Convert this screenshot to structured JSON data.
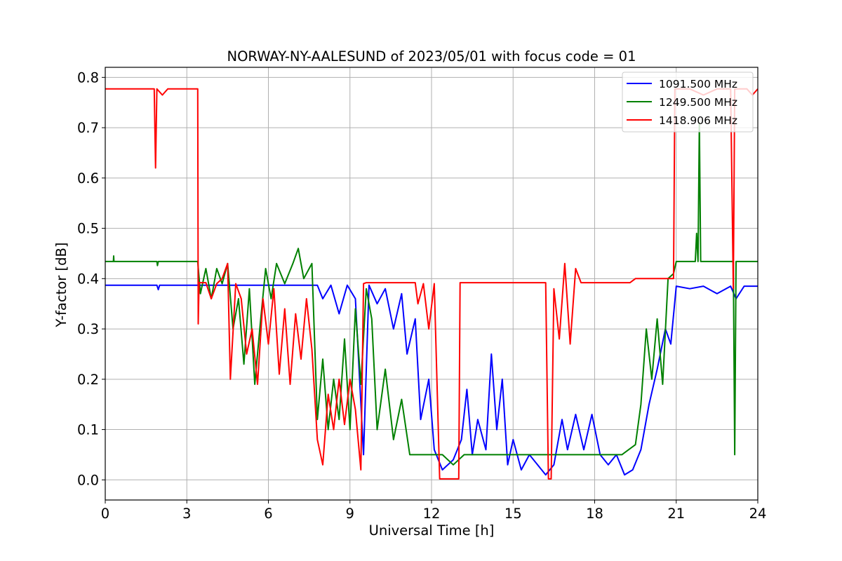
{
  "chart_data": {
    "type": "line",
    "title": "NORWAY-NY-AALESUND of 2023/05/01 with focus code = 01",
    "xlabel": "Universal Time [h]",
    "ylabel": "Y-factor [dB]",
    "xlim": [
      0,
      24
    ],
    "ylim": [
      -0.04,
      0.82
    ],
    "xticks": [
      0,
      3,
      6,
      9,
      12,
      15,
      18,
      21,
      24
    ],
    "yticks": [
      0.0,
      0.1,
      0.2,
      0.3,
      0.4,
      0.5,
      0.6,
      0.7,
      0.8
    ],
    "ytick_labels": [
      "0.0",
      "0.1",
      "0.2",
      "0.3",
      "0.4",
      "0.5",
      "0.6",
      "0.7",
      "0.8"
    ],
    "grid": true,
    "legend_position": "top-right",
    "series": [
      {
        "name": "1091.500 MHz",
        "color": "#0000ff",
        "points": [
          [
            0,
            0.387
          ],
          [
            1.9,
            0.387
          ],
          [
            1.95,
            0.378
          ],
          [
            2.0,
            0.387
          ],
          [
            4.5,
            0.387
          ],
          [
            7.8,
            0.387
          ],
          [
            8.0,
            0.36
          ],
          [
            8.3,
            0.387
          ],
          [
            8.6,
            0.33
          ],
          [
            8.9,
            0.387
          ],
          [
            9.2,
            0.36
          ],
          [
            9.5,
            0.05
          ],
          [
            9.7,
            0.387
          ],
          [
            10.0,
            0.35
          ],
          [
            10.3,
            0.38
          ],
          [
            10.6,
            0.3
          ],
          [
            10.9,
            0.37
          ],
          [
            11.1,
            0.25
          ],
          [
            11.4,
            0.32
          ],
          [
            11.6,
            0.12
          ],
          [
            11.9,
            0.2
          ],
          [
            12.1,
            0.06
          ],
          [
            12.4,
            0.02
          ],
          [
            12.8,
            0.04
          ],
          [
            13.1,
            0.08
          ],
          [
            13.3,
            0.18
          ],
          [
            13.5,
            0.05
          ],
          [
            13.7,
            0.12
          ],
          [
            14.0,
            0.06
          ],
          [
            14.2,
            0.25
          ],
          [
            14.4,
            0.1
          ],
          [
            14.6,
            0.2
          ],
          [
            14.8,
            0.03
          ],
          [
            15.0,
            0.08
          ],
          [
            15.3,
            0.02
          ],
          [
            15.6,
            0.05
          ],
          [
            15.9,
            0.03
          ],
          [
            16.2,
            0.01
          ],
          [
            16.5,
            0.03
          ],
          [
            16.8,
            0.12
          ],
          [
            17.0,
            0.06
          ],
          [
            17.3,
            0.13
          ],
          [
            17.6,
            0.06
          ],
          [
            17.9,
            0.13
          ],
          [
            18.2,
            0.05
          ],
          [
            18.5,
            0.03
          ],
          [
            18.8,
            0.05
          ],
          [
            19.1,
            0.01
          ],
          [
            19.4,
            0.02
          ],
          [
            19.7,
            0.06
          ],
          [
            20.0,
            0.15
          ],
          [
            20.3,
            0.22
          ],
          [
            20.6,
            0.3
          ],
          [
            20.8,
            0.27
          ],
          [
            21.0,
            0.385
          ],
          [
            21.5,
            0.38
          ],
          [
            22.0,
            0.385
          ],
          [
            22.5,
            0.37
          ],
          [
            23.0,
            0.385
          ],
          [
            23.2,
            0.36
          ],
          [
            23.5,
            0.385
          ],
          [
            24,
            0.385
          ]
        ]
      },
      {
        "name": "1249.500 MHz",
        "color": "#008000",
        "points": [
          [
            0,
            0.434
          ],
          [
            0.3,
            0.434
          ],
          [
            0.31,
            0.445
          ],
          [
            0.32,
            0.434
          ],
          [
            1.9,
            0.434
          ],
          [
            1.92,
            0.426
          ],
          [
            1.95,
            0.434
          ],
          [
            3.4,
            0.434
          ],
          [
            3.5,
            0.37
          ],
          [
            3.7,
            0.42
          ],
          [
            3.9,
            0.36
          ],
          [
            4.1,
            0.42
          ],
          [
            4.3,
            0.39
          ],
          [
            4.5,
            0.43
          ],
          [
            4.7,
            0.3
          ],
          [
            4.9,
            0.36
          ],
          [
            5.1,
            0.23
          ],
          [
            5.3,
            0.38
          ],
          [
            5.5,
            0.19
          ],
          [
            5.7,
            0.31
          ],
          [
            5.9,
            0.42
          ],
          [
            6.1,
            0.36
          ],
          [
            6.3,
            0.43
          ],
          [
            6.6,
            0.39
          ],
          [
            6.9,
            0.43
          ],
          [
            7.1,
            0.46
          ],
          [
            7.3,
            0.4
          ],
          [
            7.6,
            0.43
          ],
          [
            7.8,
            0.12
          ],
          [
            8.0,
            0.24
          ],
          [
            8.2,
            0.1
          ],
          [
            8.4,
            0.2
          ],
          [
            8.6,
            0.12
          ],
          [
            8.8,
            0.28
          ],
          [
            9.0,
            0.1
          ],
          [
            9.2,
            0.34
          ],
          [
            9.4,
            0.19
          ],
          [
            9.6,
            0.38
          ],
          [
            9.8,
            0.32
          ],
          [
            10.0,
            0.1
          ],
          [
            10.3,
            0.22
          ],
          [
            10.6,
            0.08
          ],
          [
            10.9,
            0.16
          ],
          [
            11.2,
            0.05
          ],
          [
            11.6,
            0.05
          ],
          [
            12.0,
            0.05
          ],
          [
            12.4,
            0.05
          ],
          [
            12.8,
            0.03
          ],
          [
            13.2,
            0.05
          ],
          [
            14.0,
            0.05
          ],
          [
            15.0,
            0.05
          ],
          [
            16.0,
            0.05
          ],
          [
            17.0,
            0.05
          ],
          [
            18.0,
            0.05
          ],
          [
            19.0,
            0.05
          ],
          [
            19.5,
            0.07
          ],
          [
            19.7,
            0.15
          ],
          [
            19.9,
            0.3
          ],
          [
            20.1,
            0.2
          ],
          [
            20.3,
            0.32
          ],
          [
            20.5,
            0.19
          ],
          [
            20.7,
            0.4
          ],
          [
            20.9,
            0.41
          ],
          [
            21.0,
            0.434
          ],
          [
            21.7,
            0.434
          ],
          [
            21.75,
            0.49
          ],
          [
            21.8,
            0.434
          ],
          [
            21.85,
            0.71
          ],
          [
            21.9,
            0.434
          ],
          [
            23.1,
            0.434
          ],
          [
            23.15,
            0.05
          ],
          [
            23.2,
            0.434
          ],
          [
            24,
            0.434
          ]
        ]
      },
      {
        "name": "1418.906 MHz",
        "color": "#ff0000",
        "points": [
          [
            0,
            0.777
          ],
          [
            1.8,
            0.777
          ],
          [
            1.85,
            0.62
          ],
          [
            1.9,
            0.777
          ],
          [
            2.1,
            0.765
          ],
          [
            2.3,
            0.777
          ],
          [
            3.4,
            0.777
          ],
          [
            3.42,
            0.31
          ],
          [
            3.45,
            0.392
          ],
          [
            3.7,
            0.392
          ],
          [
            3.9,
            0.36
          ],
          [
            4.1,
            0.39
          ],
          [
            4.3,
            0.4
          ],
          [
            4.5,
            0.43
          ],
          [
            4.6,
            0.2
          ],
          [
            4.8,
            0.39
          ],
          [
            5.0,
            0.36
          ],
          [
            5.2,
            0.25
          ],
          [
            5.4,
            0.3
          ],
          [
            5.6,
            0.19
          ],
          [
            5.8,
            0.36
          ],
          [
            6.0,
            0.27
          ],
          [
            6.2,
            0.38
          ],
          [
            6.4,
            0.21
          ],
          [
            6.6,
            0.34
          ],
          [
            6.8,
            0.19
          ],
          [
            7.0,
            0.33
          ],
          [
            7.2,
            0.24
          ],
          [
            7.4,
            0.36
          ],
          [
            7.6,
            0.26
          ],
          [
            7.8,
            0.08
          ],
          [
            8.0,
            0.03
          ],
          [
            8.2,
            0.17
          ],
          [
            8.4,
            0.1
          ],
          [
            8.6,
            0.2
          ],
          [
            8.8,
            0.11
          ],
          [
            9.0,
            0.2
          ],
          [
            9.2,
            0.14
          ],
          [
            9.4,
            0.02
          ],
          [
            9.5,
            0.39
          ],
          [
            9.6,
            0.392
          ],
          [
            11.4,
            0.392
          ],
          [
            11.5,
            0.35
          ],
          [
            11.7,
            0.39
          ],
          [
            11.9,
            0.3
          ],
          [
            12.1,
            0.39
          ],
          [
            12.3,
            0.002
          ],
          [
            13.0,
            0.002
          ],
          [
            13.05,
            0.392
          ],
          [
            15.0,
            0.392
          ],
          [
            16.2,
            0.392
          ],
          [
            16.3,
            0.002
          ],
          [
            16.4,
            0.002
          ],
          [
            16.5,
            0.38
          ],
          [
            16.7,
            0.28
          ],
          [
            16.9,
            0.43
          ],
          [
            17.1,
            0.27
          ],
          [
            17.3,
            0.42
          ],
          [
            17.5,
            0.392
          ],
          [
            19.3,
            0.392
          ],
          [
            19.5,
            0.4
          ],
          [
            20.9,
            0.4
          ],
          [
            20.95,
            0.777
          ],
          [
            21.5,
            0.777
          ],
          [
            22.0,
            0.765
          ],
          [
            22.5,
            0.777
          ],
          [
            23.0,
            0.777
          ],
          [
            23.1,
            0.38
          ],
          [
            23.15,
            0.777
          ],
          [
            23.6,
            0.777
          ],
          [
            23.8,
            0.765
          ],
          [
            24,
            0.777
          ]
        ]
      }
    ]
  }
}
